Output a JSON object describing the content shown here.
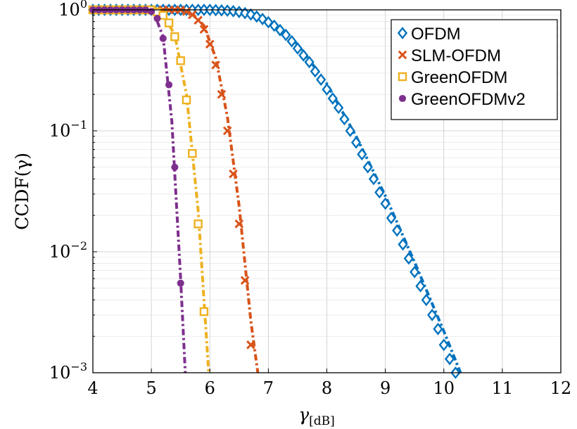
{
  "chart_data": {
    "type": "line",
    "xlabel": "γ",
    "xlabel_sub": "[dB]",
    "ylabel": "CCDF(γ)",
    "xlim": [
      4,
      12
    ],
    "ylim": [
      0.001,
      1
    ],
    "yscale": "log",
    "grid": true,
    "legend_position": "top-right",
    "x_ticks": [
      "4",
      "5",
      "6",
      "7",
      "8",
      "9",
      "10",
      "11",
      "12"
    ],
    "y_ticks": [
      {
        "value": 1,
        "base": "10",
        "exp": "0"
      },
      {
        "value": 0.1,
        "base": "10",
        "exp": "−1"
      },
      {
        "value": 0.01,
        "base": "10",
        "exp": "−2"
      },
      {
        "value": 0.001,
        "base": "10",
        "exp": "−3"
      }
    ],
    "series": [
      {
        "name": "OFDM",
        "color": "#0072bd",
        "marker": "diamond",
        "markers": [
          [
            4.0,
            1
          ],
          [
            4.1,
            1
          ],
          [
            4.2,
            1
          ],
          [
            4.3,
            1
          ],
          [
            4.4,
            1
          ],
          [
            4.5,
            1
          ],
          [
            4.6,
            1
          ],
          [
            4.7,
            1
          ],
          [
            4.8,
            1
          ],
          [
            4.9,
            1
          ],
          [
            5.0,
            1
          ],
          [
            5.1,
            1
          ],
          [
            5.2,
            1
          ],
          [
            5.3,
            1
          ],
          [
            5.4,
            1
          ],
          [
            5.5,
            1
          ],
          [
            5.6,
            1
          ],
          [
            5.7,
            1
          ],
          [
            5.8,
            1
          ],
          [
            5.9,
            1
          ],
          [
            6.0,
            1
          ],
          [
            6.1,
            0.995
          ],
          [
            6.2,
            0.99
          ],
          [
            6.3,
            0.985
          ],
          [
            6.4,
            0.975
          ],
          [
            6.5,
            0.96
          ],
          [
            6.6,
            0.94
          ],
          [
            6.7,
            0.915
          ],
          [
            6.8,
            0.88
          ],
          [
            6.9,
            0.84
          ],
          [
            7.0,
            0.79
          ],
          [
            7.1,
            0.74
          ],
          [
            7.2,
            0.68
          ],
          [
            7.3,
            0.62
          ],
          [
            7.4,
            0.55
          ],
          [
            7.5,
            0.48
          ],
          [
            7.6,
            0.42
          ],
          [
            7.7,
            0.37
          ],
          [
            7.8,
            0.31
          ],
          [
            7.9,
            0.265
          ],
          [
            8.0,
            0.22
          ],
          [
            8.1,
            0.185
          ],
          [
            8.2,
            0.155
          ],
          [
            8.3,
            0.125
          ],
          [
            8.4,
            0.1
          ],
          [
            8.5,
            0.08
          ],
          [
            8.6,
            0.064
          ],
          [
            8.7,
            0.05
          ],
          [
            8.8,
            0.04
          ],
          [
            8.9,
            0.031
          ],
          [
            9.0,
            0.025
          ],
          [
            9.1,
            0.019
          ],
          [
            9.2,
            0.015
          ],
          [
            9.3,
            0.0115
          ],
          [
            9.4,
            0.0088
          ],
          [
            9.5,
            0.0068
          ],
          [
            9.6,
            0.0052
          ],
          [
            9.7,
            0.004
          ],
          [
            9.8,
            0.003
          ],
          [
            9.9,
            0.0023
          ],
          [
            10.0,
            0.0017
          ],
          [
            10.1,
            0.0013
          ],
          [
            10.2,
            0.001
          ]
        ],
        "curve": [
          [
            4.0,
            1
          ],
          [
            6.0,
            1
          ],
          [
            6.5,
            0.97
          ],
          [
            7.0,
            0.82
          ],
          [
            7.5,
            0.52
          ],
          [
            8.0,
            0.245
          ],
          [
            8.5,
            0.09
          ],
          [
            9.0,
            0.029
          ],
          [
            9.5,
            0.0082
          ],
          [
            10.0,
            0.0022
          ],
          [
            10.5,
            0.00055
          ],
          [
            10.85,
            0.001
          ]
        ]
      },
      {
        "name": "SLM-OFDM",
        "color": "#d95319",
        "marker": "x",
        "markers": [
          [
            4.0,
            1
          ],
          [
            4.1,
            1
          ],
          [
            4.2,
            1
          ],
          [
            4.3,
            1
          ],
          [
            4.4,
            1
          ],
          [
            4.5,
            1
          ],
          [
            4.6,
            1
          ],
          [
            4.7,
            1
          ],
          [
            4.8,
            1
          ],
          [
            4.9,
            1
          ],
          [
            5.0,
            1
          ],
          [
            5.1,
            1
          ],
          [
            5.2,
            1
          ],
          [
            5.3,
            1
          ],
          [
            5.4,
            1
          ],
          [
            5.5,
            1
          ],
          [
            5.6,
            0.97
          ],
          [
            5.7,
            0.91
          ],
          [
            5.8,
            0.82
          ],
          [
            5.9,
            0.69
          ],
          [
            6.0,
            0.52
          ],
          [
            6.1,
            0.35
          ],
          [
            6.2,
            0.2
          ],
          [
            6.3,
            0.1
          ],
          [
            6.4,
            0.044
          ],
          [
            6.5,
            0.017
          ],
          [
            6.6,
            0.0058
          ],
          [
            6.7,
            0.0017
          ]
        ],
        "curve": [
          [
            4.0,
            1
          ],
          [
            5.5,
            1
          ],
          [
            5.7,
            0.93
          ],
          [
            5.9,
            0.74
          ],
          [
            6.1,
            0.4
          ],
          [
            6.3,
            0.13
          ],
          [
            6.5,
            0.024
          ],
          [
            6.7,
            0.0027
          ],
          [
            6.82,
            0.001
          ]
        ]
      },
      {
        "name": "GreenOFDM",
        "color": "#edb120",
        "marker": "square",
        "markers": [
          [
            4.0,
            1
          ],
          [
            4.1,
            1
          ],
          [
            4.2,
            1
          ],
          [
            4.3,
            1
          ],
          [
            4.4,
            1
          ],
          [
            4.5,
            1
          ],
          [
            4.6,
            1
          ],
          [
            4.7,
            1
          ],
          [
            4.8,
            1
          ],
          [
            4.9,
            1
          ],
          [
            5.0,
            1
          ],
          [
            5.1,
            0.96
          ],
          [
            5.2,
            0.9
          ],
          [
            5.3,
            0.78
          ],
          [
            5.4,
            0.6
          ],
          [
            5.5,
            0.38
          ],
          [
            5.6,
            0.18
          ],
          [
            5.7,
            0.065
          ],
          [
            5.8,
            0.017
          ],
          [
            5.9,
            0.0032
          ]
        ],
        "curve": [
          [
            4.0,
            1
          ],
          [
            5.0,
            1
          ],
          [
            5.2,
            0.92
          ],
          [
            5.4,
            0.62
          ],
          [
            5.6,
            0.2
          ],
          [
            5.8,
            0.022
          ],
          [
            5.98,
            0.001
          ]
        ]
      },
      {
        "name": "GreenOFDMv2",
        "color": "#7e2f8e",
        "marker": "circle",
        "markers": [
          [
            4.0,
            1
          ],
          [
            4.1,
            1
          ],
          [
            4.2,
            1
          ],
          [
            4.3,
            1
          ],
          [
            4.4,
            1
          ],
          [
            4.5,
            1
          ],
          [
            4.6,
            1
          ],
          [
            4.7,
            1
          ],
          [
            4.8,
            1
          ],
          [
            4.9,
            1
          ],
          [
            5.0,
            0.97
          ],
          [
            5.1,
            0.85
          ],
          [
            5.2,
            0.58
          ],
          [
            5.3,
            0.24
          ],
          [
            5.4,
            0.05
          ],
          [
            5.5,
            0.0055
          ]
        ],
        "curve": [
          [
            4.0,
            1
          ],
          [
            4.9,
            1
          ],
          [
            5.05,
            0.93
          ],
          [
            5.2,
            0.6
          ],
          [
            5.35,
            0.12
          ],
          [
            5.5,
            0.006
          ],
          [
            5.58,
            0.001
          ]
        ]
      }
    ]
  }
}
